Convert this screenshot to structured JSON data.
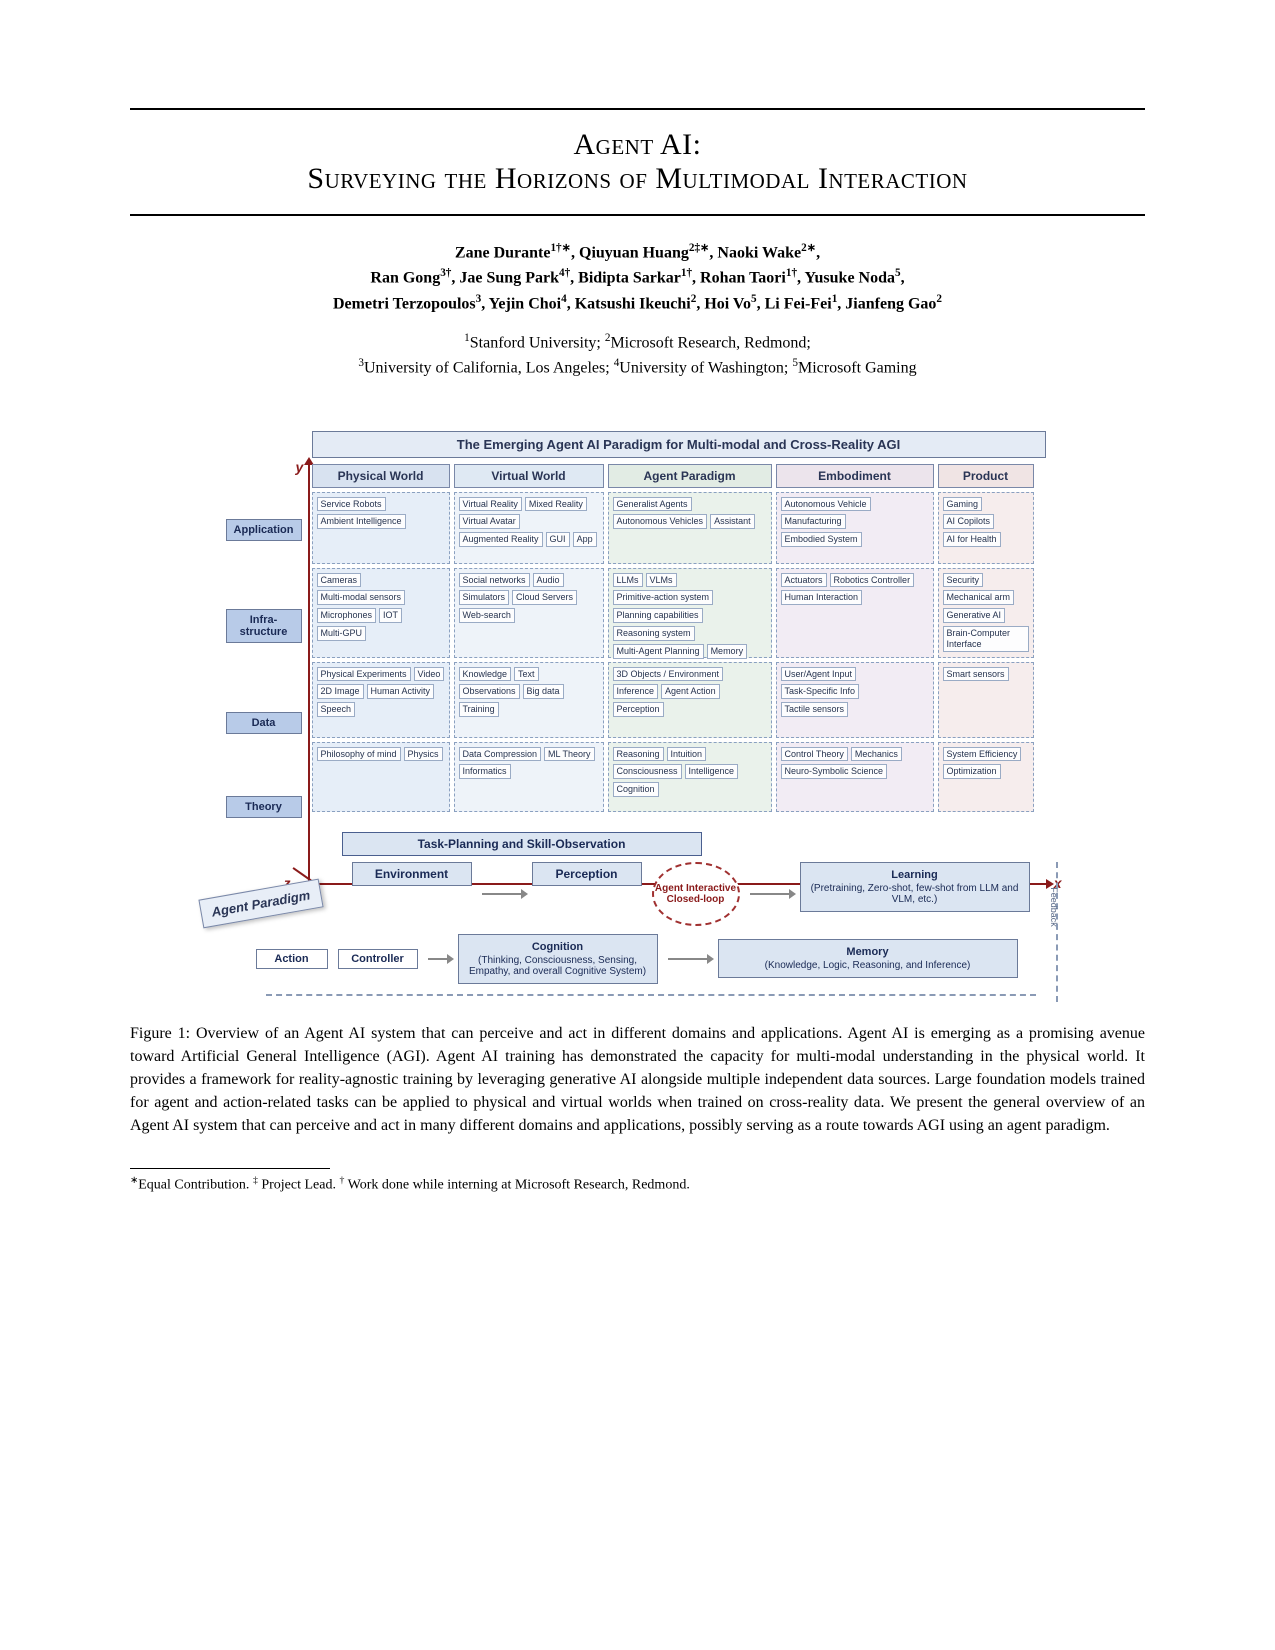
{
  "title": {
    "line1": "Agent AI:",
    "line2": "Surveying the Horizons of Multimodal Interaction"
  },
  "authors": {
    "line1_html": "Zane Durante<sup>1†∗</sup>, Qiuyuan Huang<sup>2‡∗</sup>, Naoki Wake<sup>2∗</sup>,",
    "line2_html": "Ran Gong<sup>3†</sup>, Jae Sung Park<sup>4†</sup>, Bidipta Sarkar<sup>1†</sup>, Rohan Taori<sup>1†</sup>, Yusuke Noda<sup>5</sup>,",
    "line3_html": "Demetri Terzopoulos<sup>3</sup>, Yejin Choi<sup>4</sup>, Katsushi Ikeuchi<sup>2</sup>, Hoi Vo<sup>5</sup>, Li Fei-Fei<sup>1</sup>, Jianfeng Gao<sup>2</sup>"
  },
  "affiliations": {
    "line1_html": "<sup>1</sup>Stanford University; <sup>2</sup>Microsoft Research, Redmond;",
    "line2_html": "<sup>3</sup>University of California, Los Angeles; <sup>4</sup>University of Washington; <sup>5</sup>Microsoft Gaming"
  },
  "figure": {
    "title": "The Emerging Agent AI Paradigm for Multi-modal and Cross-Reality AGI",
    "axis": {
      "y": "y",
      "x": "x",
      "z": "z"
    },
    "paradigm_badge": "Agent Paradigm",
    "columns": [
      "Physical World",
      "Virtual World",
      "Agent Paradigm",
      "Embodiment",
      "Product"
    ],
    "rows": [
      "Application",
      "Infra-structure",
      "Data",
      "Theory"
    ],
    "cells": {
      "app": {
        "c1": [
          "Service Robots",
          "Ambient Intelligence"
        ],
        "c2": [
          "Virtual Reality",
          "Mixed Reality",
          "Virtual Avatar",
          "Augmented Reality",
          "GUI",
          "App"
        ],
        "c3": [
          "Generalist Agents",
          "Autonomous Vehicles",
          "Assistant"
        ],
        "c4": [
          "Autonomous Vehicle",
          "Manufacturing",
          "Embodied System"
        ],
        "c5": [
          "Gaming",
          "AI Copilots",
          "AI for Health"
        ]
      },
      "inf": {
        "c1": [
          "Cameras",
          "Multi-modal sensors",
          "Microphones",
          "IOT",
          "Multi-GPU"
        ],
        "c2": [
          "Social networks",
          "Audio",
          "Simulators",
          "Cloud Servers",
          "Web-search"
        ],
        "c3": [
          "LLMs",
          "VLMs",
          "Primitive-action system",
          "Planning capabilities",
          "Reasoning system",
          "Multi-Agent Planning",
          "Memory"
        ],
        "c4": [
          "Actuators",
          "Robotics Controller",
          "Human Interaction"
        ],
        "c5": [
          "Security",
          "Mechanical arm",
          "Generative AI",
          "Brain-Computer Interface"
        ]
      },
      "dat": {
        "c1": [
          "Physical Experiments",
          "Video",
          "2D Image",
          "Human Activity",
          "Speech"
        ],
        "c2": [
          "Knowledge",
          "Text",
          "Observations",
          "Big data",
          "Training"
        ],
        "c3": [
          "3D Objects / Environment",
          "Inference",
          "Agent Action",
          "Perception"
        ],
        "c4": [
          "User/Agent Input",
          "Task-Specific Info",
          "Tactile sensors"
        ],
        "c5": [
          "Smart sensors"
        ]
      },
      "thy": {
        "c1": [
          "Philosophy of mind",
          "Physics"
        ],
        "c2": [
          "Data Compression",
          "ML Theory",
          "Informatics"
        ],
        "c3": [
          "Reasoning",
          "Intuition",
          "Consciousness",
          "Intelligence",
          "Cognition"
        ],
        "c4": [
          "Control Theory",
          "Mechanics",
          "Neuro-Symbolic Science"
        ],
        "c5": [
          "System Efficiency",
          "Optimization"
        ]
      }
    },
    "bottom": {
      "task_title": "Task-Planning and Skill-Observation",
      "environment": "Environment",
      "perception": "Perception",
      "loop": "Agent Interactive Closed-loop",
      "learning": "Learning",
      "learning_sub": "(Pretraining, Zero-shot, few-shot from LLM and VLM, etc.)",
      "controller": "Controller",
      "action": "Action",
      "cognition": "Cognition",
      "cognition_sub": "(Thinking, Consciousness, Sensing, Empathy, and overall Cognitive System)",
      "memory": "Memory",
      "memory_sub": "(Knowledge, Logic, Reasoning, and Inference)",
      "feedback": "Feedback"
    }
  },
  "caption": "Figure 1: Overview of an Agent AI system that can perceive and act in different domains and applications. Agent AI is emerging as a promising avenue toward Artificial General Intelligence (AGI). Agent AI training has demonstrated the capacity for multi-modal understanding in the physical world. It provides a framework for reality-agnostic training by leveraging generative AI alongside multiple independent data sources. Large foundation models trained for agent and action-related tasks can be applied to physical and virtual worlds when trained on cross-reality data. We present the general overview of an Agent AI system that can perceive and act in many different domains and applications, possibly serving as a route towards AGI using an agent paradigm.",
  "footnote_html": "<sup>∗</sup>Equal Contribution. <sup>‡</sup> Project Lead. <sup>†</sup> Work done while interning at Microsoft Research, Redmond.",
  "colors": {
    "rule": "#000000",
    "axis": "#8a1a1a",
    "header_bg": "#e4ebf5",
    "row_label_bg": "#b8cbe8",
    "col_bgs": [
      "#d8e2f0",
      "#dfe9f3",
      "#e2ece4",
      "#ece4ec",
      "#f0e4e4"
    ],
    "cell_bgs": [
      "#e6eef8",
      "#eef3f9",
      "#eaf2eb",
      "#f2ecf4",
      "#f6eded"
    ],
    "loop_border": "#a03030"
  }
}
